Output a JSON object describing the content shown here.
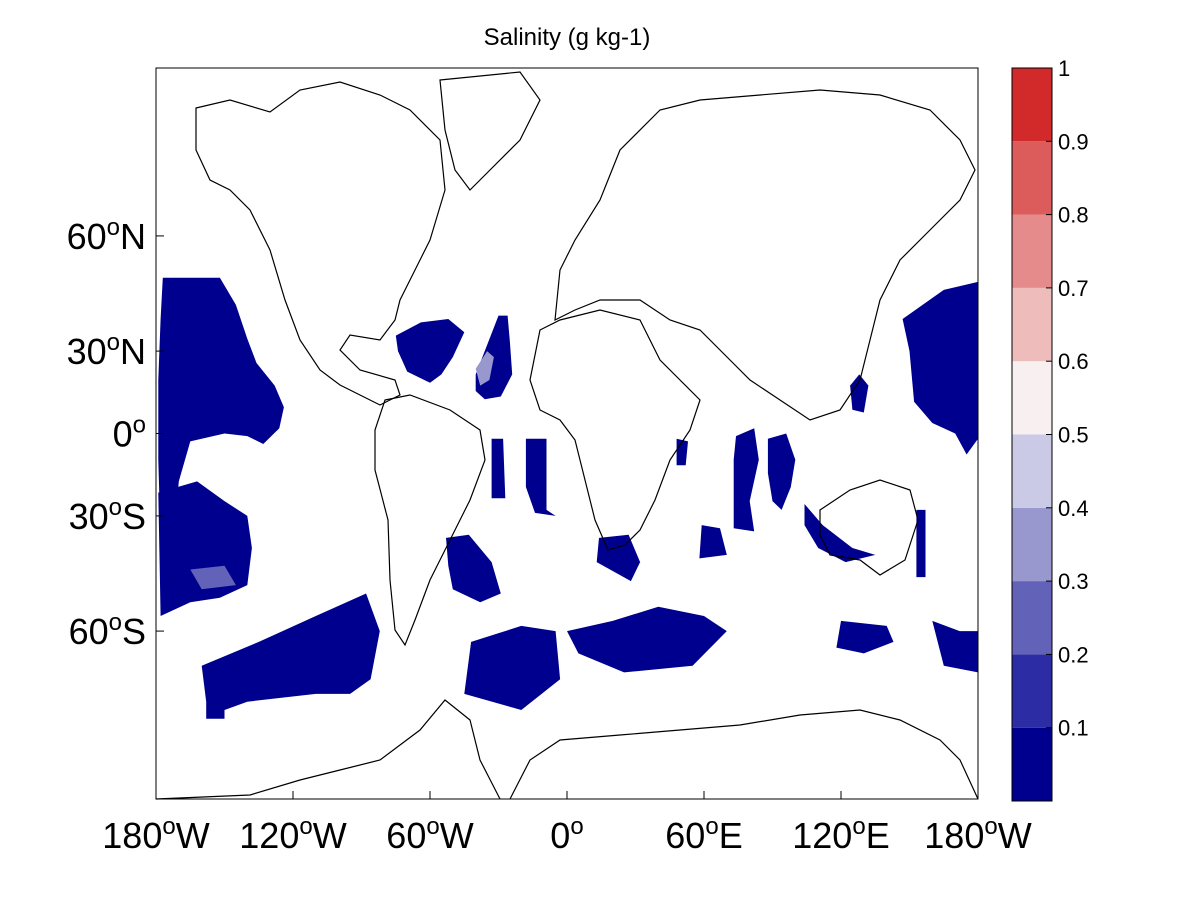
{
  "chart_data": {
    "type": "heatmap",
    "title": "Salinity (g kg-1)",
    "projection": "Mercator",
    "lon_range": [
      -180,
      180
    ],
    "lat_range": [
      -80,
      80
    ],
    "x_ticks": [
      {
        "deg": "180",
        "sup": "o",
        "hem": "W",
        "lon": -180
      },
      {
        "deg": "120",
        "sup": "o",
        "hem": "W",
        "lon": -120
      },
      {
        "deg": "60",
        "sup": "o",
        "hem": "W",
        "lon": -60
      },
      {
        "deg": "0",
        "sup": "o",
        "hem": "",
        "lon": 0
      },
      {
        "deg": "60",
        "sup": "o",
        "hem": "E",
        "lon": 60
      },
      {
        "deg": "120",
        "sup": "o",
        "hem": "E",
        "lon": 120
      },
      {
        "deg": "180",
        "sup": "o",
        "hem": "W",
        "lon": 180
      }
    ],
    "y_ticks": [
      {
        "deg": "60",
        "sup": "o",
        "hem": "N",
        "lat": 60
      },
      {
        "deg": "30",
        "sup": "o",
        "hem": "N",
        "lat": 30
      },
      {
        "deg": "0",
        "sup": "o",
        "hem": "",
        "lat": 0
      },
      {
        "deg": "30",
        "sup": "o",
        "hem": "S",
        "lat": -30
      },
      {
        "deg": "60",
        "sup": "o",
        "hem": "S",
        "lat": -60
      }
    ],
    "colorbar": {
      "range": [
        0,
        1
      ],
      "tick_labels": [
        "0.1",
        "0.2",
        "0.3",
        "0.4",
        "0.5",
        "0.6",
        "0.7",
        "0.8",
        "0.9",
        "1"
      ],
      "tick_values": [
        0.1,
        0.2,
        0.3,
        0.4,
        0.5,
        0.6,
        0.7,
        0.8,
        0.9,
        1.0
      ],
      "bins": [
        {
          "min": 0.0,
          "max": 0.1,
          "color": "#00008f"
        },
        {
          "min": 0.1,
          "max": 0.2,
          "color": "#2c2ca4"
        },
        {
          "min": 0.2,
          "max": 0.3,
          "color": "#6262b8"
        },
        {
          "min": 0.3,
          "max": 0.4,
          "color": "#9898cf"
        },
        {
          "min": 0.4,
          "max": 0.5,
          "color": "#cacae6"
        },
        {
          "min": 0.5,
          "max": 0.6,
          "color": "#f8f0f0"
        },
        {
          "min": 0.6,
          "max": 0.7,
          "color": "#efbcbc"
        },
        {
          "min": 0.7,
          "max": 0.8,
          "color": "#e58b8b"
        },
        {
          "min": 0.8,
          "max": 0.9,
          "color": "#dc5b5b"
        },
        {
          "min": 0.9,
          "max": 1.0,
          "color": "#d22a2a"
        }
      ]
    },
    "regions": [
      {
        "value": 0.05,
        "lonlat": [
          [
            -177,
            51
          ],
          [
            -152,
            51
          ],
          [
            -145,
            44
          ],
          [
            -140,
            34
          ],
          [
            -136,
            26
          ],
          [
            -128,
            18
          ],
          [
            -124,
            10
          ],
          [
            -126,
            2
          ],
          [
            -133,
            -4
          ],
          [
            -140,
            -1
          ],
          [
            -150,
            0
          ],
          [
            -165,
            -3
          ],
          [
            -170,
            -18
          ],
          [
            -172,
            -36
          ],
          [
            -178,
            -38
          ],
          [
            -179,
            -10
          ],
          [
            -179,
            20
          ],
          [
            -178,
            40
          ]
        ]
      },
      {
        "value": 0.05,
        "lonlat": [
          [
            -179,
            -22
          ],
          [
            -162,
            -18
          ],
          [
            -150,
            -25
          ],
          [
            -140,
            -30
          ],
          [
            -138,
            -40
          ],
          [
            -140,
            -50
          ],
          [
            -152,
            -53
          ],
          [
            -165,
            -54
          ],
          [
            -178,
            -57
          ]
        ]
      },
      {
        "value": 0.05,
        "lonlat": [
          [
            -160,
            -66
          ],
          [
            -135,
            -62
          ],
          [
            -110,
            -57
          ],
          [
            -88,
            -52
          ],
          [
            -82,
            -60
          ],
          [
            -86,
            -68
          ],
          [
            -95,
            -70
          ],
          [
            -110,
            -70
          ],
          [
            -140,
            -71
          ],
          [
            -150,
            -72
          ],
          [
            -158,
            -71
          ]
        ]
      },
      {
        "value": 0.05,
        "lonlat": [
          [
            -158,
            -71
          ],
          [
            -150,
            -71
          ],
          [
            -150,
            -73
          ],
          [
            -158,
            -73
          ]
        ]
      },
      {
        "value": 0.05,
        "lonlat": [
          [
            -75,
            35
          ],
          [
            -64,
            39
          ],
          [
            -52,
            40
          ],
          [
            -45,
            36
          ],
          [
            -50,
            28
          ],
          [
            -55,
            22
          ],
          [
            -60,
            19
          ],
          [
            -70,
            23
          ],
          [
            -74,
            30
          ]
        ]
      },
      {
        "value": 0.05,
        "lonlat": [
          [
            -40,
            22
          ],
          [
            -30,
            41
          ],
          [
            -26,
            41
          ],
          [
            -25,
            33
          ],
          [
            -24,
            22
          ],
          [
            -29,
            14
          ],
          [
            -36,
            13
          ],
          [
            -40,
            16
          ]
        ]
      },
      {
        "value": 0.05,
        "lonlat": [
          [
            -33,
            -2
          ],
          [
            -28,
            -2
          ],
          [
            -27,
            -24
          ],
          [
            -33,
            -24
          ]
        ]
      },
      {
        "value": 0.05,
        "lonlat": [
          [
            -18,
            -2
          ],
          [
            -9,
            -2
          ],
          [
            -9,
            -28
          ],
          [
            -5,
            -30
          ],
          [
            -14,
            -29
          ],
          [
            -18,
            -20
          ]
        ]
      },
      {
        "value": 0.05,
        "lonlat": [
          [
            -53,
            -37
          ],
          [
            -43,
            -36
          ],
          [
            -33,
            -44
          ],
          [
            -29,
            -52
          ],
          [
            -38,
            -54
          ],
          [
            -50,
            -51
          ],
          [
            -52,
            -45
          ]
        ]
      },
      {
        "value": 0.05,
        "lonlat": [
          [
            -42,
            -62
          ],
          [
            -20,
            -59
          ],
          [
            -5,
            -60
          ],
          [
            -3,
            -68
          ],
          [
            -20,
            -72
          ],
          [
            -45,
            -70
          ]
        ]
      },
      {
        "value": 0.05,
        "lonlat": [
          [
            0,
            -60
          ],
          [
            20,
            -58
          ],
          [
            40,
            -55
          ],
          [
            60,
            -57
          ],
          [
            70,
            -60
          ],
          [
            55,
            -66
          ],
          [
            25,
            -67
          ],
          [
            5,
            -64
          ]
        ]
      },
      {
        "value": 0.05,
        "lonlat": [
          [
            14,
            -37
          ],
          [
            27,
            -36
          ],
          [
            32,
            -44
          ],
          [
            28,
            -49
          ],
          [
            13,
            -44
          ]
        ]
      },
      {
        "value": 0.05,
        "lonlat": [
          [
            59,
            -33
          ],
          [
            67,
            -34
          ],
          [
            70,
            -42
          ],
          [
            58,
            -43
          ]
        ]
      },
      {
        "value": 0.05,
        "lonlat": [
          [
            48,
            -2
          ],
          [
            53,
            -3
          ],
          [
            52,
            -12
          ],
          [
            48,
            -12
          ]
        ]
      },
      {
        "value": 0.05,
        "lonlat": [
          [
            74,
            -1
          ],
          [
            82,
            2
          ],
          [
            84,
            -10
          ],
          [
            80,
            -25
          ],
          [
            82,
            -35
          ],
          [
            73,
            -34
          ],
          [
            73,
            -10
          ]
        ]
      },
      {
        "value": 0.05,
        "lonlat": [
          [
            88,
            -2
          ],
          [
            96,
            0
          ],
          [
            100,
            -10
          ],
          [
            98,
            -20
          ],
          [
            94,
            -28
          ],
          [
            90,
            -25
          ],
          [
            88,
            -15
          ]
        ]
      },
      {
        "value": 0.05,
        "lonlat": [
          [
            104,
            -26
          ],
          [
            112,
            -33
          ],
          [
            125,
            -40
          ],
          [
            135,
            -42
          ],
          [
            122,
            -44
          ],
          [
            110,
            -40
          ],
          [
            104,
            -33
          ]
        ]
      },
      {
        "value": 0.05,
        "lonlat": [
          [
            153,
            -28
          ],
          [
            157,
            -28
          ],
          [
            157,
            -48
          ],
          [
            153,
            -48
          ]
        ]
      },
      {
        "value": 0.05,
        "lonlat": [
          [
            120,
            -58
          ],
          [
            140,
            -59
          ],
          [
            143,
            -62
          ],
          [
            130,
            -64
          ],
          [
            118,
            -63
          ]
        ]
      },
      {
        "value": 0.05,
        "lonlat": [
          [
            160,
            -58
          ],
          [
            172,
            -60
          ],
          [
            180,
            -60
          ],
          [
            180,
            -67
          ],
          [
            165,
            -66
          ]
        ]
      },
      {
        "value": 0.05,
        "lonlat": [
          [
            147,
            40
          ],
          [
            165,
            48
          ],
          [
            180,
            50
          ],
          [
            180,
            -2
          ],
          [
            175,
            -8
          ],
          [
            170,
            0
          ],
          [
            160,
            4
          ],
          [
            152,
            12
          ],
          [
            150,
            30
          ]
        ]
      },
      {
        "value": 0.05,
        "lonlat": [
          [
            124,
            18
          ],
          [
            128,
            22
          ],
          [
            132,
            18
          ],
          [
            130,
            8
          ],
          [
            125,
            9
          ]
        ]
      },
      {
        "value": 0.35,
        "lonlat": [
          [
            -40,
            24
          ],
          [
            -35,
            30
          ],
          [
            -32,
            28
          ],
          [
            -34,
            20
          ],
          [
            -38,
            18
          ]
        ]
      },
      {
        "value": 0.25,
        "lonlat": [
          [
            -165,
            -46
          ],
          [
            -150,
            -45
          ],
          [
            -145,
            -50
          ],
          [
            -160,
            -51
          ]
        ]
      }
    ]
  }
}
